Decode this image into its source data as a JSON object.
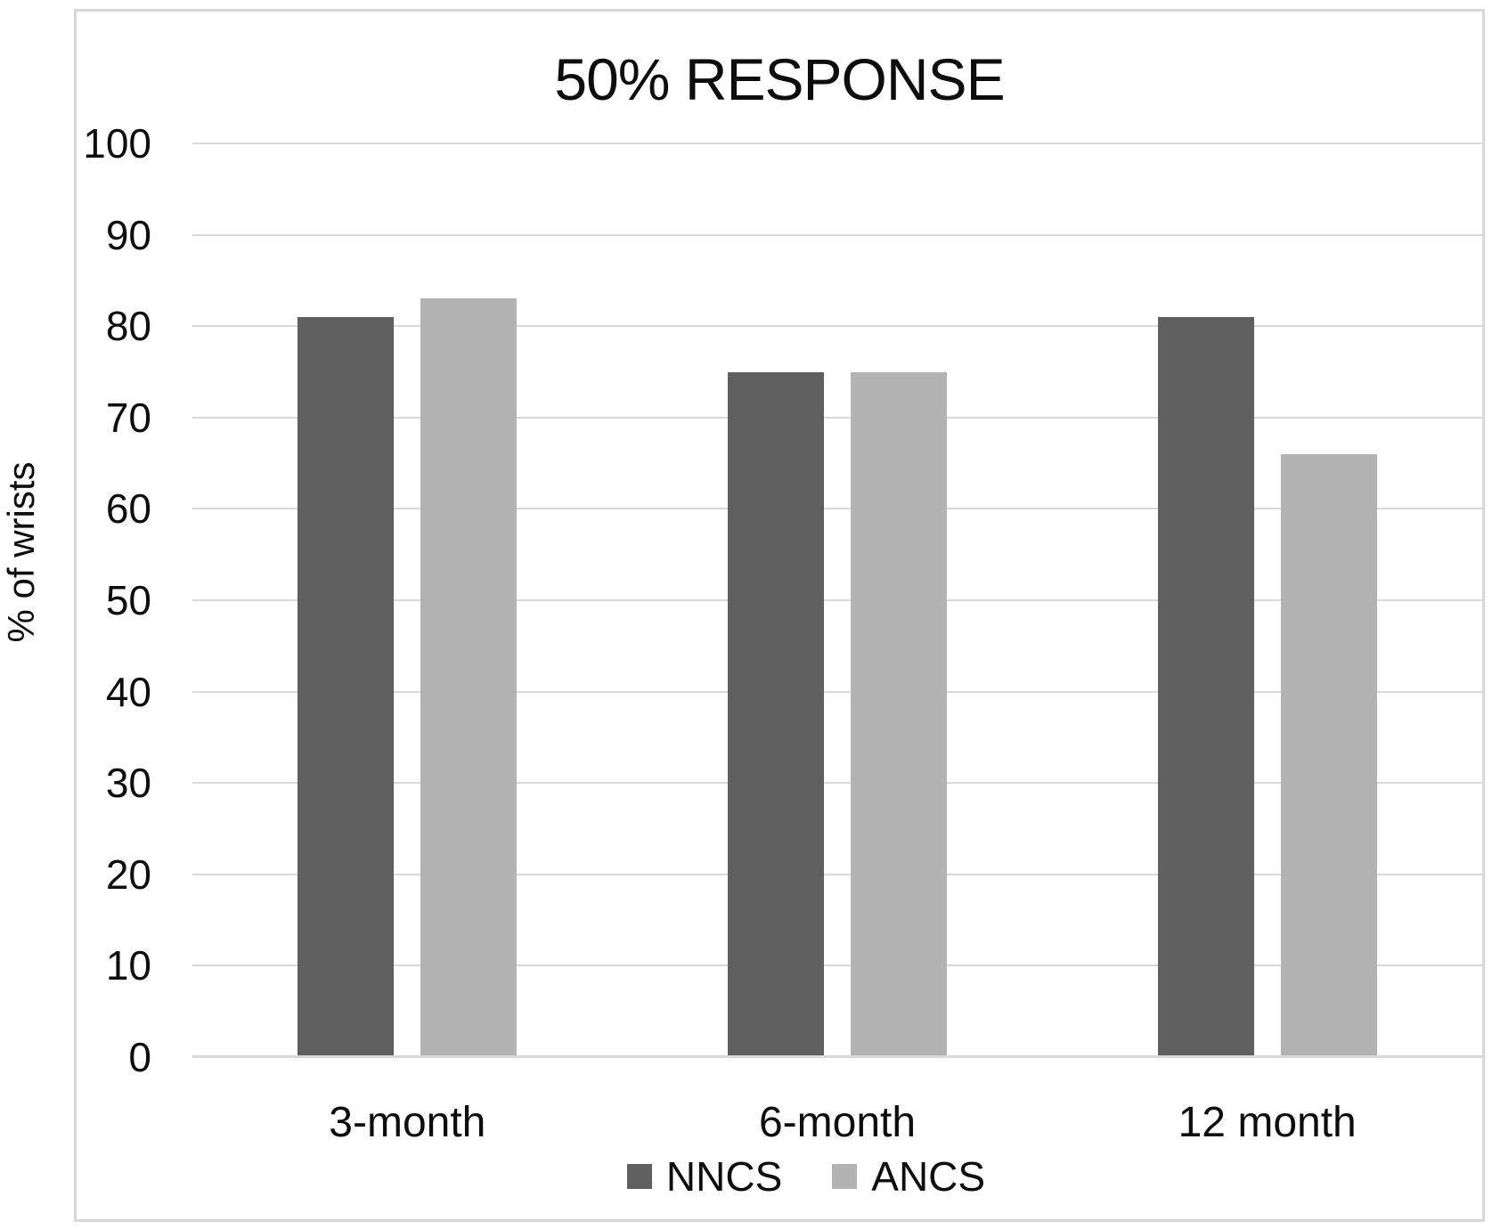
{
  "chart_data": {
    "type": "bar",
    "title": "50% RESPONSE",
    "xlabel": "",
    "ylabel": "% of wrists",
    "categories": [
      "3-month",
      "6-month",
      "12 month"
    ],
    "series": [
      {
        "name": "NNCS",
        "color": "#5f5f5f",
        "values": [
          81,
          75,
          81
        ]
      },
      {
        "name": "ANCS",
        "color": "#b3b3b3",
        "values": [
          83,
          75,
          66
        ]
      }
    ],
    "ylim": [
      0,
      100
    ],
    "ytick_step": 10,
    "yticks": [
      100,
      90,
      80,
      70,
      60,
      50,
      40,
      30,
      20,
      10,
      0
    ],
    "grid": true,
    "legend_position": "bottom",
    "gridline_color": "#d9d9d9",
    "axis_line_color": "#d9d9d9",
    "border_color": "#d8d8d8",
    "text_color": "#0d0d0d"
  }
}
